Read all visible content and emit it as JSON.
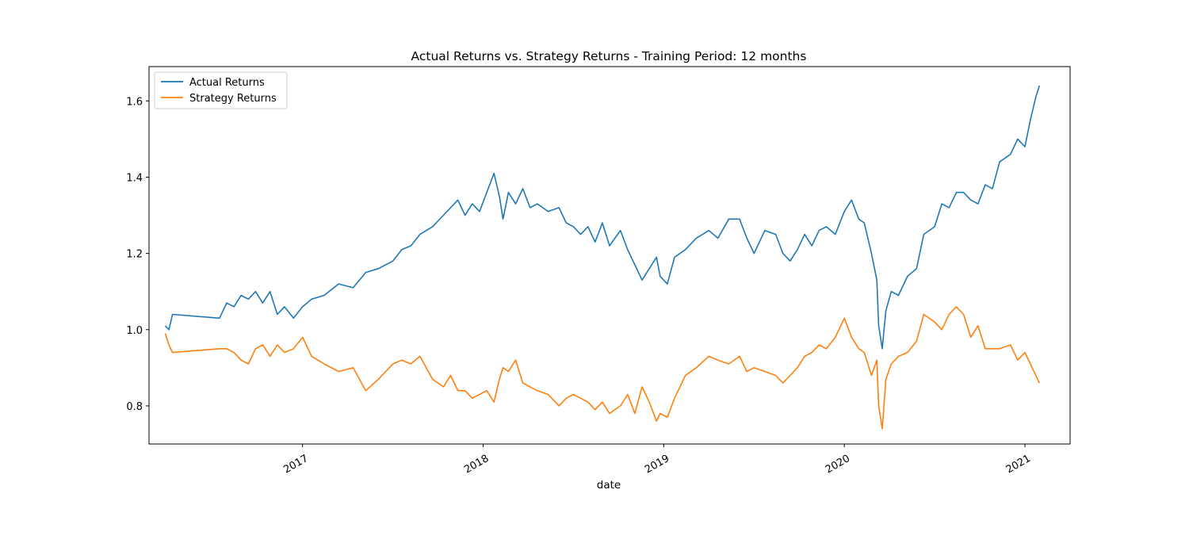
{
  "chart_data": {
    "type": "line",
    "title": "Actual Returns vs. Strategy Returns - Training Period: 12 months",
    "xlabel": "date",
    "ylabel": "",
    "x_range": [
      2016.15,
      2021.25
    ],
    "ylim": [
      0.7,
      1.69
    ],
    "grid": false,
    "legend_position": "top-left",
    "x_ticks": [
      {
        "value": 2017,
        "label": "2017"
      },
      {
        "value": 2018,
        "label": "2018"
      },
      {
        "value": 2019,
        "label": "2019"
      },
      {
        "value": 2020,
        "label": "2020"
      },
      {
        "value": 2021,
        "label": "2021"
      }
    ],
    "y_ticks": [
      {
        "value": 0.8,
        "label": "0.8"
      },
      {
        "value": 1.0,
        "label": "1.0"
      },
      {
        "value": 1.2,
        "label": "1.2"
      },
      {
        "value": 1.4,
        "label": "1.4"
      },
      {
        "value": 1.6,
        "label": "1.6"
      }
    ],
    "series": [
      {
        "name": "Actual Returns",
        "color": "#1f77b4",
        "points": [
          [
            2016.24,
            1.01
          ],
          [
            2016.26,
            1.0
          ],
          [
            2016.28,
            1.04
          ],
          [
            2016.54,
            1.03
          ],
          [
            2016.58,
            1.07
          ],
          [
            2016.62,
            1.06
          ],
          [
            2016.66,
            1.09
          ],
          [
            2016.7,
            1.08
          ],
          [
            2016.74,
            1.1
          ],
          [
            2016.78,
            1.07
          ],
          [
            2016.82,
            1.1
          ],
          [
            2016.86,
            1.04
          ],
          [
            2016.9,
            1.06
          ],
          [
            2016.95,
            1.03
          ],
          [
            2017.0,
            1.06
          ],
          [
            2017.05,
            1.08
          ],
          [
            2017.12,
            1.09
          ],
          [
            2017.2,
            1.12
          ],
          [
            2017.28,
            1.11
          ],
          [
            2017.35,
            1.15
          ],
          [
            2017.42,
            1.16
          ],
          [
            2017.5,
            1.18
          ],
          [
            2017.55,
            1.21
          ],
          [
            2017.6,
            1.22
          ],
          [
            2017.65,
            1.25
          ],
          [
            2017.72,
            1.27
          ],
          [
            2017.78,
            1.3
          ],
          [
            2017.82,
            1.32
          ],
          [
            2017.86,
            1.34
          ],
          [
            2017.9,
            1.3
          ],
          [
            2017.94,
            1.33
          ],
          [
            2017.98,
            1.31
          ],
          [
            2018.02,
            1.36
          ],
          [
            2018.06,
            1.41
          ],
          [
            2018.09,
            1.35
          ],
          [
            2018.11,
            1.29
          ],
          [
            2018.14,
            1.36
          ],
          [
            2018.18,
            1.33
          ],
          [
            2018.22,
            1.37
          ],
          [
            2018.26,
            1.32
          ],
          [
            2018.3,
            1.33
          ],
          [
            2018.36,
            1.31
          ],
          [
            2018.42,
            1.32
          ],
          [
            2018.46,
            1.28
          ],
          [
            2018.5,
            1.27
          ],
          [
            2018.54,
            1.25
          ],
          [
            2018.58,
            1.27
          ],
          [
            2018.62,
            1.23
          ],
          [
            2018.66,
            1.28
          ],
          [
            2018.7,
            1.22
          ],
          [
            2018.76,
            1.26
          ],
          [
            2018.8,
            1.21
          ],
          [
            2018.84,
            1.17
          ],
          [
            2018.88,
            1.13
          ],
          [
            2018.92,
            1.16
          ],
          [
            2018.96,
            1.19
          ],
          [
            2018.98,
            1.14
          ],
          [
            2019.02,
            1.12
          ],
          [
            2019.06,
            1.19
          ],
          [
            2019.12,
            1.21
          ],
          [
            2019.18,
            1.24
          ],
          [
            2019.25,
            1.26
          ],
          [
            2019.3,
            1.24
          ],
          [
            2019.36,
            1.29
          ],
          [
            2019.42,
            1.29
          ],
          [
            2019.46,
            1.24
          ],
          [
            2019.5,
            1.2
          ],
          [
            2019.56,
            1.26
          ],
          [
            2019.62,
            1.25
          ],
          [
            2019.66,
            1.2
          ],
          [
            2019.7,
            1.18
          ],
          [
            2019.74,
            1.21
          ],
          [
            2019.78,
            1.25
          ],
          [
            2019.82,
            1.22
          ],
          [
            2019.86,
            1.26
          ],
          [
            2019.9,
            1.27
          ],
          [
            2019.95,
            1.25
          ],
          [
            2020.0,
            1.31
          ],
          [
            2020.04,
            1.34
          ],
          [
            2020.08,
            1.29
          ],
          [
            2020.11,
            1.28
          ],
          [
            2020.15,
            1.2
          ],
          [
            2020.18,
            1.13
          ],
          [
            2020.19,
            1.01
          ],
          [
            2020.21,
            0.95
          ],
          [
            2020.23,
            1.05
          ],
          [
            2020.26,
            1.1
          ],
          [
            2020.3,
            1.09
          ],
          [
            2020.35,
            1.14
          ],
          [
            2020.4,
            1.16
          ],
          [
            2020.44,
            1.25
          ],
          [
            2020.5,
            1.27
          ],
          [
            2020.54,
            1.33
          ],
          [
            2020.58,
            1.32
          ],
          [
            2020.62,
            1.36
          ],
          [
            2020.66,
            1.36
          ],
          [
            2020.7,
            1.34
          ],
          [
            2020.74,
            1.33
          ],
          [
            2020.78,
            1.38
          ],
          [
            2020.82,
            1.37
          ],
          [
            2020.86,
            1.44
          ],
          [
            2020.92,
            1.46
          ],
          [
            2020.96,
            1.5
          ],
          [
            2021.0,
            1.48
          ],
          [
            2021.03,
            1.55
          ],
          [
            2021.06,
            1.61
          ],
          [
            2021.08,
            1.64
          ]
        ]
      },
      {
        "name": "Strategy Returns",
        "color": "#ff7f0e",
        "points": [
          [
            2016.24,
            0.99
          ],
          [
            2016.26,
            0.96
          ],
          [
            2016.28,
            0.94
          ],
          [
            2016.54,
            0.95
          ],
          [
            2016.58,
            0.95
          ],
          [
            2016.62,
            0.94
          ],
          [
            2016.66,
            0.92
          ],
          [
            2016.7,
            0.91
          ],
          [
            2016.74,
            0.95
          ],
          [
            2016.78,
            0.96
          ],
          [
            2016.82,
            0.93
          ],
          [
            2016.86,
            0.96
          ],
          [
            2016.9,
            0.94
          ],
          [
            2016.95,
            0.95
          ],
          [
            2017.0,
            0.98
          ],
          [
            2017.05,
            0.93
          ],
          [
            2017.12,
            0.91
          ],
          [
            2017.2,
            0.89
          ],
          [
            2017.28,
            0.9
          ],
          [
            2017.35,
            0.84
          ],
          [
            2017.42,
            0.87
          ],
          [
            2017.5,
            0.91
          ],
          [
            2017.55,
            0.92
          ],
          [
            2017.6,
            0.91
          ],
          [
            2017.65,
            0.93
          ],
          [
            2017.72,
            0.87
          ],
          [
            2017.78,
            0.85
          ],
          [
            2017.82,
            0.88
          ],
          [
            2017.86,
            0.84
          ],
          [
            2017.9,
            0.84
          ],
          [
            2017.94,
            0.82
          ],
          [
            2017.98,
            0.83
          ],
          [
            2018.02,
            0.84
          ],
          [
            2018.06,
            0.81
          ],
          [
            2018.09,
            0.87
          ],
          [
            2018.11,
            0.9
          ],
          [
            2018.14,
            0.89
          ],
          [
            2018.18,
            0.92
          ],
          [
            2018.22,
            0.86
          ],
          [
            2018.26,
            0.85
          ],
          [
            2018.3,
            0.84
          ],
          [
            2018.36,
            0.83
          ],
          [
            2018.42,
            0.8
          ],
          [
            2018.46,
            0.82
          ],
          [
            2018.5,
            0.83
          ],
          [
            2018.54,
            0.82
          ],
          [
            2018.58,
            0.81
          ],
          [
            2018.62,
            0.79
          ],
          [
            2018.66,
            0.81
          ],
          [
            2018.7,
            0.78
          ],
          [
            2018.76,
            0.8
          ],
          [
            2018.8,
            0.83
          ],
          [
            2018.84,
            0.78
          ],
          [
            2018.88,
            0.85
          ],
          [
            2018.92,
            0.81
          ],
          [
            2018.96,
            0.76
          ],
          [
            2018.98,
            0.78
          ],
          [
            2019.02,
            0.77
          ],
          [
            2019.06,
            0.82
          ],
          [
            2019.12,
            0.88
          ],
          [
            2019.18,
            0.9
          ],
          [
            2019.25,
            0.93
          ],
          [
            2019.3,
            0.92
          ],
          [
            2019.36,
            0.91
          ],
          [
            2019.42,
            0.93
          ],
          [
            2019.46,
            0.89
          ],
          [
            2019.5,
            0.9
          ],
          [
            2019.56,
            0.89
          ],
          [
            2019.62,
            0.88
          ],
          [
            2019.66,
            0.86
          ],
          [
            2019.7,
            0.88
          ],
          [
            2019.74,
            0.9
          ],
          [
            2019.78,
            0.93
          ],
          [
            2019.82,
            0.94
          ],
          [
            2019.86,
            0.96
          ],
          [
            2019.9,
            0.95
          ],
          [
            2019.95,
            0.98
          ],
          [
            2020.0,
            1.03
          ],
          [
            2020.04,
            0.98
          ],
          [
            2020.08,
            0.95
          ],
          [
            2020.11,
            0.94
          ],
          [
            2020.15,
            0.88
          ],
          [
            2020.18,
            0.92
          ],
          [
            2020.19,
            0.8
          ],
          [
            2020.21,
            0.74
          ],
          [
            2020.23,
            0.87
          ],
          [
            2020.26,
            0.91
          ],
          [
            2020.3,
            0.93
          ],
          [
            2020.35,
            0.94
          ],
          [
            2020.4,
            0.97
          ],
          [
            2020.44,
            1.04
          ],
          [
            2020.5,
            1.02
          ],
          [
            2020.54,
            1.0
          ],
          [
            2020.58,
            1.04
          ],
          [
            2020.62,
            1.06
          ],
          [
            2020.66,
            1.04
          ],
          [
            2020.7,
            0.98
          ],
          [
            2020.74,
            1.01
          ],
          [
            2020.78,
            0.95
          ],
          [
            2020.82,
            0.95
          ],
          [
            2020.86,
            0.95
          ],
          [
            2020.92,
            0.96
          ],
          [
            2020.96,
            0.92
          ],
          [
            2021.0,
            0.94
          ],
          [
            2021.03,
            0.91
          ],
          [
            2021.06,
            0.88
          ],
          [
            2021.08,
            0.86
          ]
        ]
      }
    ]
  }
}
